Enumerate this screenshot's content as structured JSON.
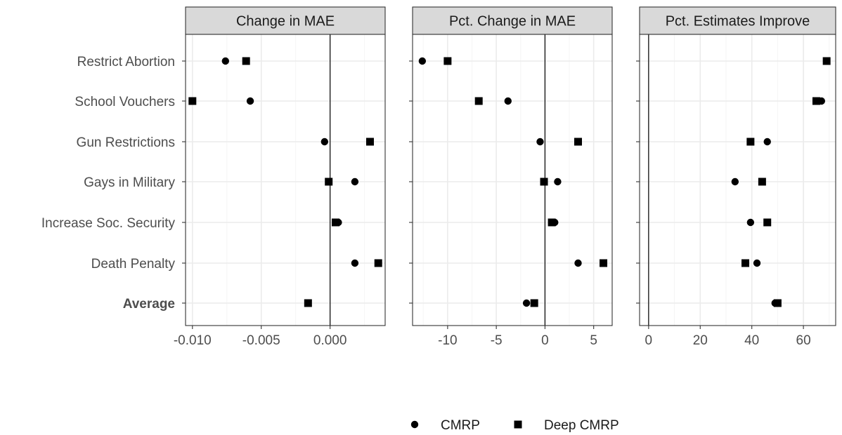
{
  "chart_data": [
    {
      "type": "scatter",
      "title": "Change in MAE",
      "categories": [
        "Restrict Abortion",
        "School Vouchers",
        "Gun Restrictions",
        "Gays in Military",
        "Increase Soc. Security",
        "Death Penalty",
        "Average"
      ],
      "bold_categories": [
        "Average"
      ],
      "xlim": [
        -0.0105,
        0.004
      ],
      "xticks": [
        -0.01,
        -0.005,
        0.0
      ],
      "xtick_labels": [
        "-0.010",
        "-0.005",
        "0.000"
      ],
      "vline": 0,
      "series": [
        {
          "name": "CMRP",
          "marker": "circle",
          "values": [
            -0.0076,
            -0.0058,
            -0.0004,
            0.0018,
            0.0006,
            0.0018,
            -0.0016
          ]
        },
        {
          "name": "Deep CMRP",
          "marker": "square",
          "values": [
            -0.0061,
            -0.01,
            0.0029,
            -0.0001,
            0.0004,
            0.0035,
            -0.0016
          ]
        }
      ]
    },
    {
      "type": "scatter",
      "title": "Pct. Change in MAE",
      "categories": [
        "Restrict Abortion",
        "School Vouchers",
        "Gun Restrictions",
        "Gays in Military",
        "Increase Soc. Security",
        "Death Penalty",
        "Average"
      ],
      "xlim": [
        -13.6,
        6.9
      ],
      "xticks": [
        -10,
        -5,
        0,
        5
      ],
      "xtick_labels": [
        "-10",
        "-5",
        "0",
        "5"
      ],
      "vline": 0,
      "series": [
        {
          "name": "CMRP",
          "marker": "circle",
          "values": [
            -12.6,
            -3.8,
            -0.5,
            1.3,
            1.0,
            3.4,
            -1.9
          ]
        },
        {
          "name": "Deep CMRP",
          "marker": "square",
          "values": [
            -10.0,
            -6.8,
            3.4,
            -0.1,
            0.7,
            6.0,
            -1.1
          ]
        }
      ]
    },
    {
      "type": "scatter",
      "title": "Pct. Estimates Improve",
      "categories": [
        "Restrict Abortion",
        "School Vouchers",
        "Gun Restrictions",
        "Gays in Military",
        "Increase Soc. Security",
        "Death Penalty",
        "Average"
      ],
      "xlim": [
        -3.5,
        72.5
      ],
      "xticks": [
        0,
        20,
        40,
        60
      ],
      "xtick_labels": [
        "0",
        "20",
        "40",
        "60"
      ],
      "vline": 0,
      "series": [
        {
          "name": "CMRP",
          "marker": "circle",
          "values": [
            69,
            67,
            46,
            33.5,
            39.5,
            42,
            49
          ]
        },
        {
          "name": "Deep CMRP",
          "marker": "square",
          "values": [
            69,
            65,
            39.5,
            44,
            46,
            37.5,
            50
          ]
        }
      ]
    }
  ],
  "legend": {
    "position": "bottom",
    "items": [
      {
        "label": "CMRP",
        "marker": "circle"
      },
      {
        "label": "Deep CMRP",
        "marker": "square"
      }
    ]
  },
  "colors": {
    "points": "#000000",
    "strip": "#d9d9d9",
    "gridline": "#ebebeb",
    "text": "#4d4d4d"
  }
}
